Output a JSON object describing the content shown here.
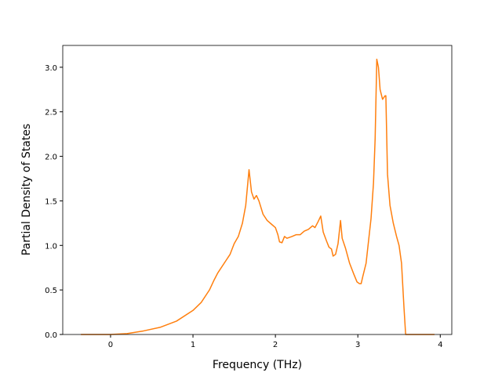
{
  "chart_data": {
    "type": "line",
    "xlabel": "Frequency (THz)",
    "ylabel": "Partial Density of States",
    "x": [
      -0.36,
      0,
      0.2,
      0.4,
      0.6,
      0.8,
      1.0,
      1.1,
      1.2,
      1.25,
      1.3,
      1.4,
      1.45,
      1.5,
      1.55,
      1.6,
      1.64,
      1.68,
      1.71,
      1.74,
      1.77,
      1.8,
      1.85,
      1.9,
      1.95,
      2.0,
      2.03,
      2.05,
      2.08,
      2.11,
      2.14,
      2.2,
      2.25,
      2.3,
      2.35,
      2.4,
      2.45,
      2.48,
      2.52,
      2.55,
      2.58,
      2.62,
      2.65,
      2.68,
      2.7,
      2.73,
      2.76,
      2.79,
      2.81,
      2.85,
      2.9,
      2.95,
      2.99,
      3.02,
      3.04,
      3.06,
      3.1,
      3.13,
      3.16,
      3.19,
      3.21,
      3.23,
      3.25,
      3.27,
      3.3,
      3.33,
      3.34,
      3.36,
      3.39,
      3.43,
      3.47,
      3.5,
      3.53,
      3.56,
      3.58,
      3.7,
      3.93
    ],
    "series": [
      {
        "color": "#ff7f0e",
        "values": [
          0,
          0,
          0.01,
          0.04,
          0.08,
          0.15,
          0.27,
          0.36,
          0.5,
          0.6,
          0.69,
          0.83,
          0.9,
          1.02,
          1.1,
          1.25,
          1.45,
          1.85,
          1.6,
          1.52,
          1.56,
          1.5,
          1.35,
          1.28,
          1.24,
          1.2,
          1.12,
          1.04,
          1.03,
          1.1,
          1.08,
          1.1,
          1.12,
          1.12,
          1.16,
          1.18,
          1.22,
          1.2,
          1.27,
          1.33,
          1.15,
          1.05,
          0.98,
          0.96,
          0.88,
          0.9,
          1.02,
          1.28,
          1.08,
          0.97,
          0.8,
          0.68,
          0.59,
          0.57,
          0.57,
          0.65,
          0.8,
          1.05,
          1.3,
          1.7,
          2.2,
          3.09,
          3.0,
          2.75,
          2.64,
          2.68,
          2.68,
          1.8,
          1.45,
          1.25,
          1.1,
          1.0,
          0.8,
          0.3,
          0.0,
          0,
          0
        ]
      }
    ],
    "xlim": [
      -0.58,
      4.14
    ],
    "ylim": [
      0,
      3.245
    ],
    "xticks": [
      0,
      1,
      2,
      3,
      4
    ],
    "yticks": [
      {
        "value": 0,
        "label": "0.0"
      },
      {
        "value": 0.5,
        "label": "0.5"
      },
      {
        "value": 1,
        "label": "1.0"
      },
      {
        "value": 1.5,
        "label": "1.5"
      },
      {
        "value": 2,
        "label": "2.0"
      },
      {
        "value": 2.5,
        "label": "2.5"
      },
      {
        "value": 3,
        "label": "3.0"
      }
    ]
  }
}
